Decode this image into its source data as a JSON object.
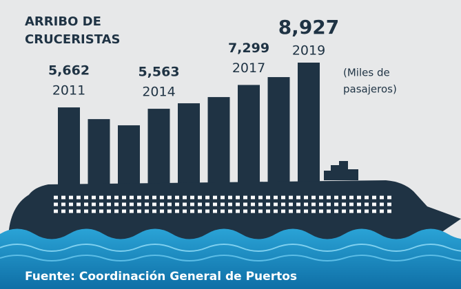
{
  "chart_data": {
    "type": "bar",
    "title": [
      "ARRIBO DE",
      "CRUCERISTAS"
    ],
    "note": [
      "(Miles de",
      "pasajeros)"
    ],
    "source": "Fuente: Coordinación General de Puertos",
    "categories": [
      "2011",
      null,
      null,
      "2014",
      null,
      null,
      "2017",
      null,
      "2019"
    ],
    "values": [
      5662,
      4809,
      4357,
      5563,
      5963,
      6415,
      7299,
      7871,
      8927
    ],
    "value_labels": [
      "5,662",
      null,
      null,
      "5,563",
      null,
      null,
      "7,299",
      null,
      "8,927"
    ],
    "color": "#1f3344"
  }
}
